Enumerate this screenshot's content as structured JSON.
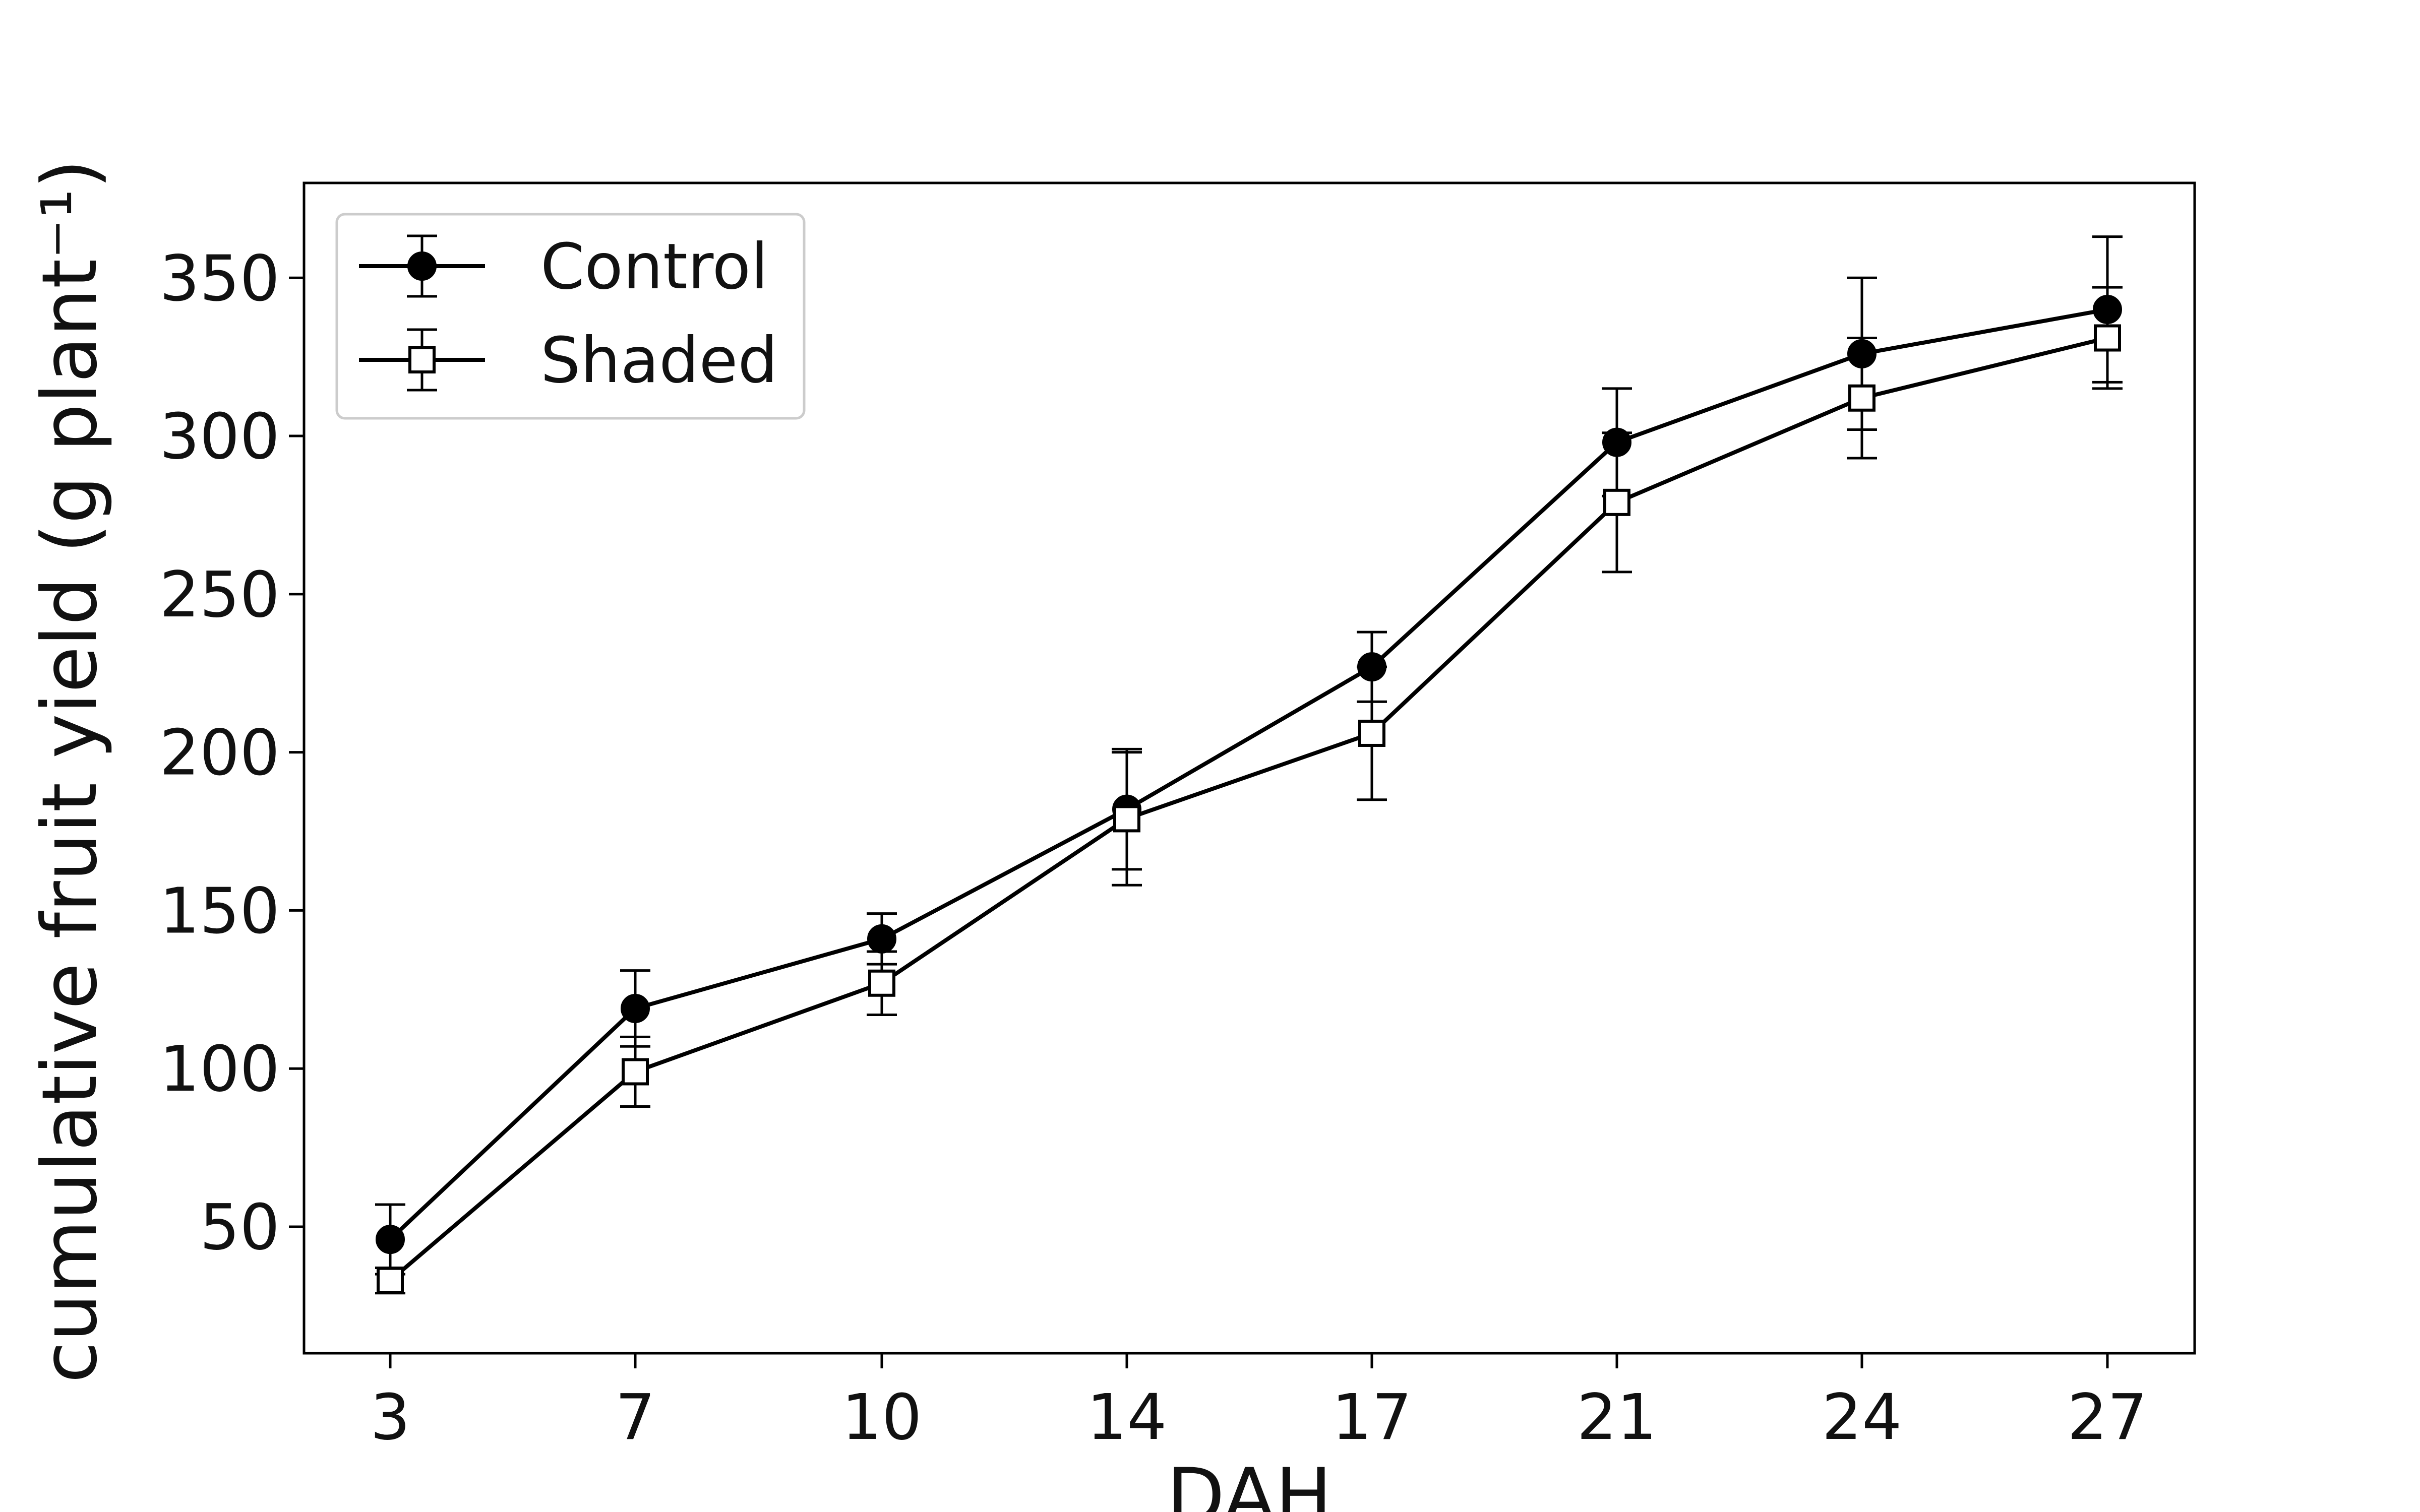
{
  "chart_data": {
    "type": "line",
    "x": [
      3,
      7,
      10,
      14,
      17,
      21,
      24,
      27
    ],
    "xticks": [
      "3",
      "7",
      "10",
      "14",
      "17",
      "21",
      "24",
      "27"
    ],
    "xlabel": "DAH",
    "ylabel": "cumulative fruit yield (g plant⁻¹)",
    "yticks": [
      "50",
      "100",
      "150",
      "200",
      "250",
      "300",
      "350"
    ],
    "ylim": [
      10,
      380
    ],
    "grid": false,
    "legend_position": "top-left",
    "series": [
      {
        "name": "Control",
        "marker": "filled-circle",
        "color": "#000000",
        "values": [
          46,
          119,
          141,
          182,
          227,
          298,
          326,
          340
        ],
        "error": [
          11,
          12,
          8,
          19,
          11,
          17,
          24,
          23
        ]
      },
      {
        "name": "Shaded",
        "marker": "open-square",
        "color": "#000000",
        "values": [
          33,
          99,
          127,
          179,
          206,
          279,
          312,
          331
        ],
        "error": [
          4,
          11,
          10,
          21,
          21,
          22,
          19,
          16
        ]
      }
    ]
  }
}
